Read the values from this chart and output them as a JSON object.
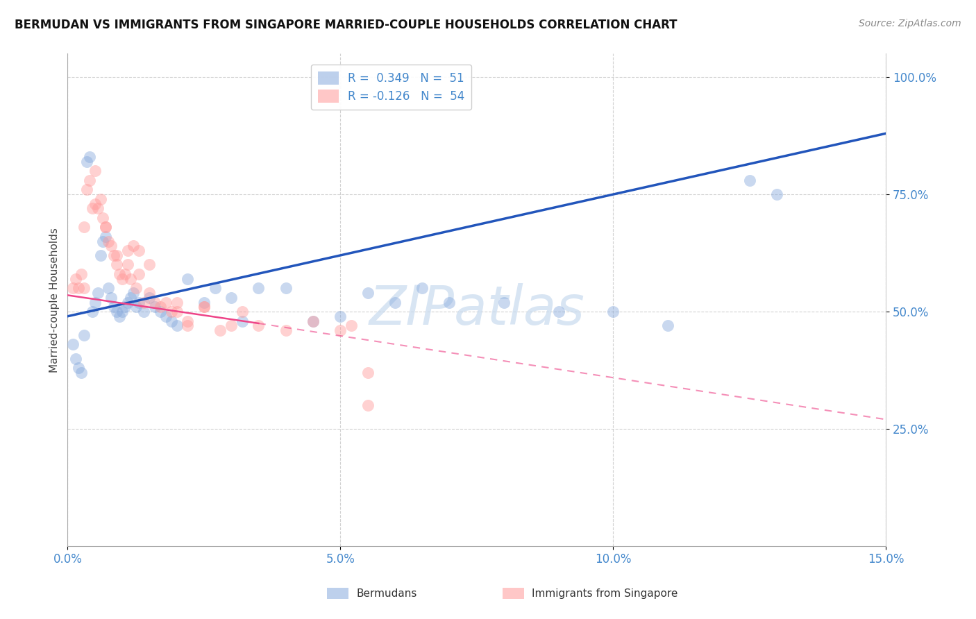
{
  "title": "BERMUDAN VS IMMIGRANTS FROM SINGAPORE MARRIED-COUPLE HOUSEHOLDS CORRELATION CHART",
  "source": "Source: ZipAtlas.com",
  "ylabel": "Married-couple Households",
  "xlim": [
    0.0,
    15.0
  ],
  "ylim": [
    0.0,
    105.0
  ],
  "xticks": [
    0.0,
    5.0,
    10.0,
    15.0
  ],
  "yticks": [
    25.0,
    50.0,
    75.0,
    100.0
  ],
  "xtick_labels": [
    "0.0%",
    "5.0%",
    "10.0%",
    "15.0%"
  ],
  "ytick_labels": [
    "25.0%",
    "50.0%",
    "75.0%",
    "100.0%"
  ],
  "blue_color": "#88AADD",
  "pink_color": "#FF9999",
  "trend_blue_color": "#2255BB",
  "trend_pink_solid_color": "#EE4488",
  "trend_pink_dash_color": "#EE4488",
  "tick_color": "#4488CC",
  "watermark_text": "ZIPatlas",
  "watermark_color": "#C8DAEE",
  "legend_blue_label": "R =  0.349   N =  51",
  "legend_pink_label": "R = -0.126   N =  54",
  "bottom_legend_blue": "Bermudans",
  "bottom_legend_pink": "Immigrants from Singapore",
  "blue_x": [
    0.1,
    0.15,
    0.2,
    0.25,
    0.3,
    0.35,
    0.4,
    0.45,
    0.5,
    0.55,
    0.6,
    0.65,
    0.7,
    0.75,
    0.8,
    0.85,
    0.9,
    0.95,
    1.0,
    1.05,
    1.1,
    1.15,
    1.2,
    1.25,
    1.3,
    1.4,
    1.5,
    1.6,
    1.7,
    1.8,
    1.9,
    2.0,
    2.2,
    2.5,
    2.7,
    3.0,
    3.2,
    3.5,
    4.0,
    4.5,
    5.0,
    5.5,
    6.0,
    6.5,
    7.0,
    8.0,
    9.0,
    10.0,
    11.0,
    12.5,
    13.0
  ],
  "blue_y": [
    43.0,
    40.0,
    38.0,
    37.0,
    45.0,
    82.0,
    83.0,
    50.0,
    52.0,
    54.0,
    62.0,
    65.0,
    66.0,
    55.0,
    53.0,
    51.0,
    50.0,
    49.0,
    50.0,
    51.0,
    52.0,
    53.0,
    54.0,
    51.0,
    52.0,
    50.0,
    53.0,
    51.0,
    50.0,
    49.0,
    48.0,
    47.0,
    57.0,
    52.0,
    55.0,
    53.0,
    48.0,
    55.0,
    55.0,
    48.0,
    49.0,
    54.0,
    52.0,
    55.0,
    52.0,
    52.0,
    50.0,
    50.0,
    47.0,
    78.0,
    75.0
  ],
  "pink_x": [
    0.1,
    0.15,
    0.2,
    0.25,
    0.3,
    0.35,
    0.4,
    0.45,
    0.5,
    0.55,
    0.6,
    0.65,
    0.7,
    0.75,
    0.8,
    0.85,
    0.9,
    0.95,
    1.0,
    1.05,
    1.1,
    1.15,
    1.2,
    1.25,
    1.3,
    1.4,
    1.5,
    1.6,
    1.7,
    1.8,
    1.9,
    2.0,
    2.2,
    2.5,
    2.8,
    3.0,
    3.5,
    4.0,
    4.5,
    5.0,
    5.5,
    0.3,
    0.5,
    0.7,
    0.9,
    1.1,
    1.3,
    1.5,
    2.5,
    3.2,
    5.2,
    5.5,
    2.0,
    2.2
  ],
  "pink_y": [
    55.0,
    57.0,
    55.0,
    58.0,
    68.0,
    76.0,
    78.0,
    72.0,
    80.0,
    72.0,
    74.0,
    70.0,
    68.0,
    65.0,
    64.0,
    62.0,
    60.0,
    58.0,
    57.0,
    58.0,
    60.0,
    57.0,
    64.0,
    55.0,
    63.0,
    52.0,
    54.0,
    52.0,
    51.0,
    52.0,
    50.0,
    50.0,
    48.0,
    51.0,
    46.0,
    47.0,
    47.0,
    46.0,
    48.0,
    46.0,
    30.0,
    55.0,
    73.0,
    68.0,
    62.0,
    63.0,
    58.0,
    60.0,
    51.0,
    50.0,
    47.0,
    37.0,
    52.0,
    47.0
  ],
  "blue_trend_x0": 0.0,
  "blue_trend_y0": 49.0,
  "blue_trend_x1": 15.0,
  "blue_trend_y1": 88.0,
  "pink_solid_x0": 0.0,
  "pink_solid_y0": 53.5,
  "pink_solid_x1": 3.5,
  "pink_solid_y1": 47.5,
  "pink_dash_x0": 3.5,
  "pink_dash_y0": 47.5,
  "pink_dash_x1": 15.0,
  "pink_dash_y1": 27.0
}
